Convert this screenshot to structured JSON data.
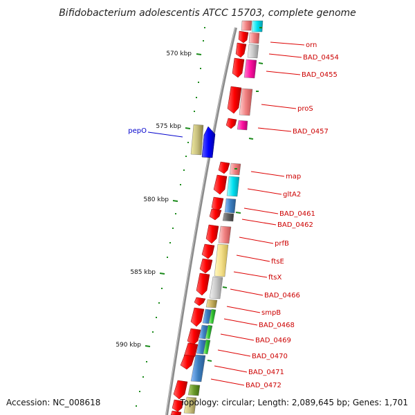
{
  "title": "Bifidobacterium adolescentis ATCC 15703, complete genome",
  "footer": {
    "accession": "Accession: NC_008618",
    "summary": "Topology: circular; Length: 2,089,645 bp; Genes: 1,701"
  },
  "ruler": [
    "570 kbp",
    "575 kbp",
    "580 kbp",
    "585 kbp",
    "590 kbp"
  ],
  "genes_left": [
    "pepO"
  ],
  "genes_right": [
    "orn",
    "BAD_0454",
    "BAD_0455",
    "proS",
    "BAD_0457",
    "map",
    "gltA2",
    "BAD_0461",
    "BAD_0462",
    "prfB",
    "ftsE",
    "ftsX",
    "BAD_0466",
    "smpB",
    "BAD_0468",
    "BAD_0469",
    "BAD_0470",
    "BAD_0471",
    "BAD_0472"
  ],
  "colors": {
    "forward_strand": "#ff0000",
    "left_label": "#0000cc",
    "right_label": "#cc0000",
    "backbone": "#8a8a8a",
    "tick": "#1a8a1a"
  }
}
